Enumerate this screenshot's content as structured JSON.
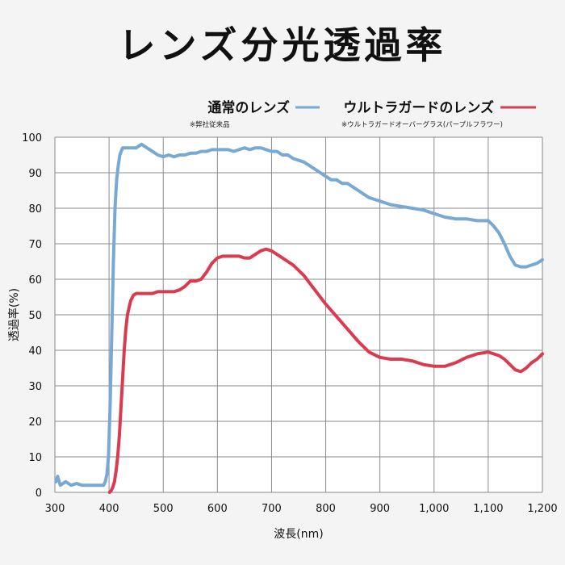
{
  "chart_data": {
    "type": "line",
    "title": "レンズ分光透過率",
    "xlabel": "波長(nm)",
    "ylabel": "透過率(%)",
    "xlim": [
      300,
      1200
    ],
    "ylim": [
      0,
      100
    ],
    "x_ticks": [
      300,
      400,
      500,
      600,
      700,
      800,
      900,
      1000,
      1100,
      1200
    ],
    "x_tick_labels": [
      "300",
      "400",
      "500",
      "600",
      "700",
      "800",
      "900",
      "1,000",
      "1,100",
      "1,200"
    ],
    "y_ticks": [
      0,
      10,
      20,
      30,
      40,
      50,
      60,
      70,
      80,
      90,
      100
    ],
    "y_tick_labels": [
      "0",
      "10",
      "20",
      "30",
      "40",
      "50",
      "60",
      "70",
      "80",
      "90",
      "100"
    ],
    "grid": true,
    "legend_position": "top-right",
    "series": [
      {
        "name": "通常のレンズ",
        "note": "※弊社従来品",
        "color": "#78a8d4",
        "x": [
          302,
          305,
          310,
          320,
          330,
          340,
          350,
          360,
          370,
          380,
          390,
          393,
          396,
          399,
          402,
          405,
          408,
          411,
          414,
          417,
          420,
          425,
          430,
          440,
          450,
          460,
          470,
          480,
          490,
          500,
          510,
          520,
          530,
          540,
          550,
          560,
          570,
          580,
          590,
          600,
          610,
          620,
          630,
          640,
          650,
          660,
          670,
          680,
          690,
          700,
          710,
          720,
          730,
          740,
          750,
          760,
          770,
          780,
          790,
          800,
          810,
          820,
          830,
          840,
          850,
          860,
          870,
          880,
          890,
          900,
          920,
          940,
          960,
          980,
          1000,
          1020,
          1040,
          1060,
          1080,
          1100,
          1110,
          1120,
          1130,
          1140,
          1150,
          1160,
          1170,
          1180,
          1190,
          1200
        ],
        "y": [
          3,
          4.5,
          2,
          3,
          2,
          2.5,
          2,
          2,
          2,
          2,
          2,
          3,
          5,
          10,
          25,
          45,
          65,
          80,
          88,
          92,
          95,
          97,
          97,
          97,
          97,
          98,
          97,
          96,
          95,
          94.5,
          95,
          94.5,
          95,
          95,
          95.5,
          95.5,
          96,
          96,
          96.5,
          96.5,
          96.5,
          96.5,
          96,
          96.5,
          97,
          96.5,
          97,
          97,
          96.5,
          96,
          96,
          95,
          95,
          94,
          93.5,
          93,
          92,
          91,
          90,
          89,
          88,
          88,
          87,
          87,
          86,
          85,
          84,
          83,
          82.5,
          82,
          81,
          80.5,
          80,
          79.5,
          78.5,
          77.5,
          77,
          77,
          76.5,
          76.5,
          75,
          73,
          70,
          66.5,
          64,
          63.5,
          63.5,
          64,
          64.5,
          65.5
        ]
      },
      {
        "name": "ウルトラガードのレンズ",
        "note": "※ウルトラガードオーバーグラス(パープルフラワー)",
        "color": "#d93b50",
        "x": [
          401,
          404,
          407,
          410,
          413,
          416,
          419,
          422,
          425,
          428,
          431,
          434,
          437,
          440,
          445,
          450,
          460,
          470,
          480,
          490,
          500,
          510,
          520,
          530,
          540,
          550,
          560,
          570,
          580,
          590,
          600,
          610,
          620,
          630,
          640,
          650,
          660,
          670,
          680,
          690,
          700,
          710,
          720,
          730,
          740,
          750,
          760,
          770,
          780,
          790,
          800,
          820,
          840,
          860,
          880,
          900,
          920,
          940,
          960,
          980,
          1000,
          1020,
          1040,
          1060,
          1080,
          1100,
          1110,
          1120,
          1130,
          1140,
          1150,
          1160,
          1170,
          1180,
          1190,
          1200
        ],
        "y": [
          0,
          0.5,
          1.5,
          3,
          6,
          10,
          16,
          24,
          32,
          40,
          46,
          50,
          52,
          54,
          55.5,
          56,
          56,
          56,
          56,
          56.5,
          56.5,
          56.5,
          56.5,
          57,
          58,
          59.5,
          59.5,
          60,
          62,
          64.5,
          66,
          66.5,
          66.5,
          66.5,
          66.5,
          66,
          66,
          67,
          68,
          68.5,
          68,
          67,
          66,
          65,
          64,
          62.5,
          61,
          59,
          57,
          55,
          53,
          49.5,
          46,
          42.5,
          39.5,
          38,
          37.5,
          37.5,
          37,
          36,
          35.5,
          35.5,
          36.5,
          38,
          39,
          39.5,
          39,
          38.5,
          37.5,
          36,
          34.5,
          34,
          35,
          36.5,
          37.5,
          39
        ]
      }
    ]
  }
}
